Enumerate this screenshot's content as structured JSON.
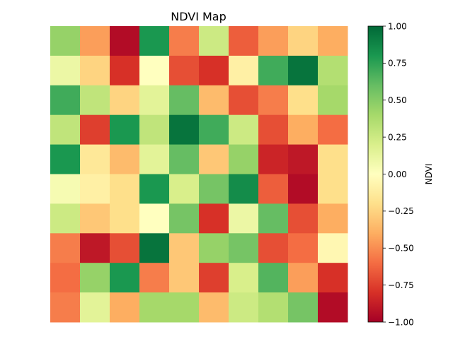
{
  "chart_data": {
    "type": "heatmap",
    "title": "NDVI Map",
    "colormap": "RdYlGn",
    "vmin": -1.0,
    "vmax": 1.0,
    "colorbar_label": "NDVI",
    "colorbar_ticks": [
      {
        "value": 1.0,
        "label": "1.00"
      },
      {
        "value": 0.75,
        "label": "0.75"
      },
      {
        "value": 0.5,
        "label": "0.50"
      },
      {
        "value": 0.25,
        "label": "0.25"
      },
      {
        "value": 0.0,
        "label": "0.00"
      },
      {
        "value": -0.25,
        "label": "−0.25"
      },
      {
        "value": -0.5,
        "label": "−0.50"
      },
      {
        "value": -0.75,
        "label": "−0.75"
      },
      {
        "value": -1.0,
        "label": "−1.00"
      }
    ],
    "values": [
      [
        0.45,
        -0.45,
        -0.95,
        0.8,
        -0.55,
        0.25,
        -0.65,
        -0.45,
        -0.25,
        -0.4
      ],
      [
        0.1,
        -0.25,
        -0.8,
        0.0,
        -0.7,
        -0.8,
        -0.1,
        0.7,
        0.95,
        0.35
      ],
      [
        0.7,
        0.3,
        -0.25,
        0.15,
        0.6,
        -0.35,
        -0.7,
        -0.55,
        -0.2,
        0.4
      ],
      [
        0.3,
        -0.75,
        0.8,
        0.3,
        0.95,
        0.7,
        0.25,
        -0.7,
        -0.4,
        -0.6
      ],
      [
        0.8,
        -0.15,
        -0.35,
        0.15,
        0.6,
        -0.3,
        0.45,
        -0.85,
        -0.9,
        -0.2
      ],
      [
        0.05,
        -0.1,
        -0.2,
        0.8,
        0.2,
        0.55,
        0.85,
        -0.65,
        -0.95,
        -0.2
      ],
      [
        0.25,
        -0.3,
        -0.2,
        0.0,
        0.55,
        -0.8,
        0.1,
        0.6,
        -0.7,
        -0.4
      ],
      [
        -0.55,
        -0.9,
        -0.7,
        0.95,
        -0.3,
        0.45,
        0.55,
        -0.7,
        -0.6,
        -0.05
      ],
      [
        -0.6,
        0.45,
        0.8,
        -0.55,
        -0.3,
        -0.75,
        0.2,
        0.65,
        -0.45,
        -0.8
      ],
      [
        -0.55,
        0.15,
        -0.4,
        0.4,
        0.4,
        -0.35,
        0.25,
        0.35,
        0.55,
        -0.95
      ]
    ]
  }
}
